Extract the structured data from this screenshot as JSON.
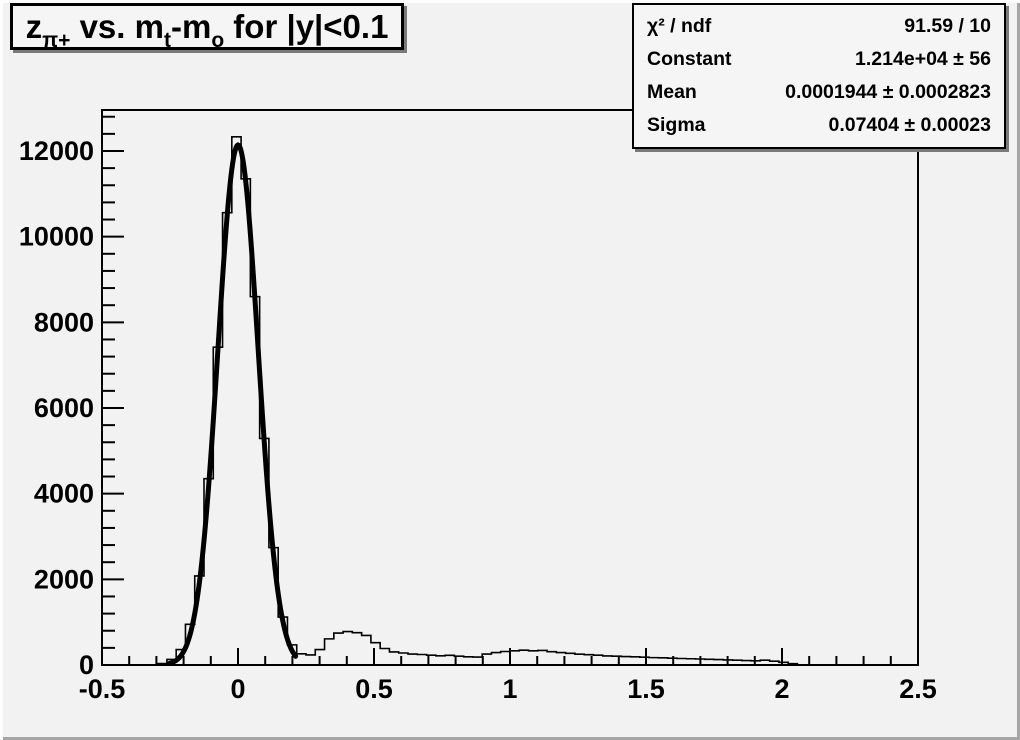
{
  "window": {
    "background": "#f2f2f2",
    "accent": "#000000"
  },
  "title": {
    "text_flat": "z_{pi+} vs. m_t-m_o for |y|<0.1",
    "parts": [
      {
        "t": "z",
        "sub": false
      },
      {
        "t": "π+",
        "sub": true
      },
      {
        "t": " vs. m",
        "sub": false
      },
      {
        "t": "t",
        "sub": true
      },
      {
        "t": "-m",
        "sub": false
      },
      {
        "t": "o",
        "sub": true
      },
      {
        "t": " for |y|<0.1",
        "sub": false
      }
    ]
  },
  "stats": {
    "rows": [
      {
        "label": "χ² / ndf",
        "value": "91.59 / 10"
      },
      {
        "label": "Constant",
        "value": "1.214e+04 ± 56"
      },
      {
        "label": "Mean",
        "value": "0.0001944 ± 0.0002823"
      },
      {
        "label": "Sigma",
        "value": "0.07404 ± 0.00023"
      }
    ]
  },
  "chart_data": {
    "type": "bar",
    "subtype": "step-histogram-with-gaussian-fit",
    "title": "z_{pi+} vs. m_t-m_o for |y|<0.1",
    "xlabel": "",
    "ylabel": "",
    "xlim": [
      -0.5,
      2.5
    ],
    "ylim": [
      0,
      12957
    ],
    "grid": false,
    "legend_position": "none",
    "x_major_ticks": [
      -0.5,
      0,
      0.5,
      1,
      1.5,
      2,
      2.5
    ],
    "x_tick_labels": [
      "-0.5",
      "0",
      "0.5",
      "1",
      "1.5",
      "2",
      "2.5"
    ],
    "x_minor_step": 0.1,
    "y_major_ticks": [
      0,
      2000,
      4000,
      6000,
      8000,
      10000,
      12000
    ],
    "y_tick_labels": [
      "0",
      "2000",
      "4000",
      "6000",
      "8000",
      "10000",
      "12000"
    ],
    "y_minor_step": 400,
    "bins": {
      "start": -0.5,
      "width": 0.0340909,
      "count": 88
    },
    "counts": [
      0,
      0,
      0,
      0,
      0,
      0,
      35,
      130,
      360,
      950,
      2080,
      4350,
      7420,
      10560,
      12330,
      11350,
      8600,
      5290,
      2740,
      1120,
      470,
      260,
      235,
      360,
      610,
      745,
      780,
      755,
      690,
      520,
      385,
      305,
      280,
      255,
      245,
      230,
      215,
      225,
      205,
      190,
      185,
      255,
      290,
      315,
      330,
      345,
      330,
      340,
      310,
      290,
      272,
      252,
      240,
      228,
      212,
      205,
      198,
      192,
      182,
      172,
      168,
      158,
      152,
      146,
      140,
      132,
      126,
      118,
      112,
      104,
      98,
      112,
      88,
      62,
      30,
      0,
      0,
      0,
      0,
      0,
      0,
      0,
      0,
      0,
      0,
      0,
      0,
      0
    ],
    "fit": {
      "model": "gaussian",
      "constant": 12140,
      "mean": 0.0001944,
      "sigma": 0.07404,
      "draw_range": [
        -0.252,
        0.212
      ]
    }
  }
}
